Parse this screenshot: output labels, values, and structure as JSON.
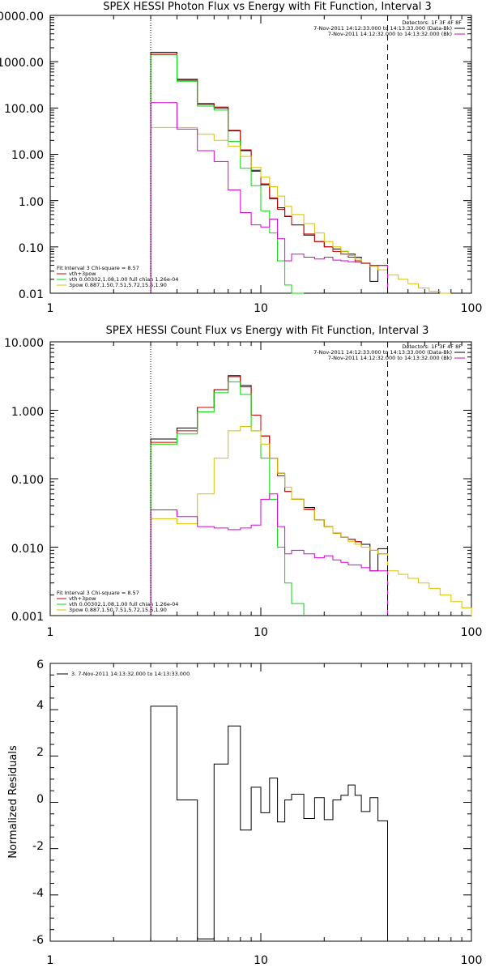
{
  "colors": {
    "black": "#000000",
    "red": "#cc0000",
    "green": "#00dd00",
    "yellow": "#d8c000",
    "magenta": "#d800d8"
  },
  "chart_data": [
    {
      "type": "line",
      "panel": "photon",
      "title": "SPEX HESSI Photon Flux vs Energy with Fit Function, Interval 3",
      "xscale": "log",
      "yscale": "log",
      "xlim": [
        1,
        100
      ],
      "ylim": [
        0.01,
        10000
      ],
      "xticks": [
        1,
        10,
        100
      ],
      "xtick_labels": [
        "1",
        "10",
        "100"
      ],
      "yticks": [
        0.01,
        0.1,
        1,
        10,
        100,
        1000,
        10000
      ],
      "ytick_labels": [
        "0.01",
        "0.10",
        "1.00",
        "10.00",
        "100.00",
        "1000.00",
        "10000.00"
      ],
      "vlines": [
        {
          "x": 3,
          "style": "dotted"
        },
        {
          "x": 40,
          "style": "dashed"
        }
      ],
      "legend_top_right": [
        "Detectors: 1F 3F 4F 8F",
        "7-Nov-2011 14:12:33.000 to 14:13:33.000 (Data-Bk)",
        "7-Nov-2011 14:12:32.000 to 14:13:32.000 (Bk)"
      ],
      "legend_bottom_left": [
        "Fit Interval 3   Chi-square = 8.57",
        "vth+3pow",
        "vth 0.00302,1.08,1.00  full chian 1.26e-04",
        "3pow 0.887,1.50,7.51,5.72,15.5,1.90"
      ],
      "bin_edges": [
        3.0,
        4.0,
        5.0,
        6.0,
        7.0,
        8.0,
        9.0,
        10.0,
        11.0,
        12.0,
        13.0,
        14.0,
        16.0,
        18.0,
        20.0,
        22.0,
        24.0,
        26.0,
        28.0,
        30.0,
        33.0,
        36.0,
        40.0,
        45.0,
        50.0,
        56.0,
        63.0,
        71.0,
        80.0,
        90.0,
        100.0
      ],
      "series": [
        {
          "color": "black",
          "values": [
            1600,
            400,
            120,
            100,
            32,
            12,
            4.5,
            2.2,
            1.1,
            0.7,
            0.45,
            0.3,
            0.18,
            0.13,
            0.1,
            0.09,
            0.08,
            0.07,
            0.06,
            0.045,
            0.018,
            0.04
          ]
        },
        {
          "color": "red",
          "values": [
            1450,
            420,
            125,
            105,
            33,
            12.5,
            4.3,
            2.3,
            1.15,
            0.65,
            0.46,
            0.3,
            0.19,
            0.13,
            0.1,
            0.08,
            0.07,
            0.06,
            0.05,
            0.045,
            0.04,
            0.04
          ]
        },
        {
          "color": "green",
          "values": [
            1400,
            380,
            110,
            90,
            19,
            5,
            2.1,
            0.6,
            0.2,
            0.05,
            0.015,
            0.01
          ]
        },
        {
          "color": "yellow",
          "values": [
            38,
            38,
            27,
            20,
            15,
            9,
            5.2,
            3.2,
            2.0,
            1.25,
            0.75,
            0.5,
            0.32,
            0.2,
            0.13,
            0.1,
            0.08,
            0.065,
            0.055,
            0.045,
            0.038,
            0.032,
            0.025,
            0.02,
            0.016,
            0.013,
            0.011,
            0.01
          ]
        },
        {
          "color": "magenta",
          "values": [
            130,
            35,
            12,
            7,
            1.7,
            0.55,
            0.3,
            0.27,
            0.4,
            0.15,
            0.05,
            0.07,
            0.06,
            0.055,
            0.06,
            0.052,
            0.05,
            0.048,
            0.047,
            0.044,
            0.04,
            0.04
          ]
        }
      ]
    },
    {
      "type": "line",
      "panel": "count",
      "title": "SPEX HESSI Count Flux vs Energy with Fit Function, Interval 3",
      "xscale": "log",
      "yscale": "log",
      "xlim": [
        1,
        100
      ],
      "ylim": [
        0.001,
        10
      ],
      "xticks": [
        1,
        10,
        100
      ],
      "xtick_labels": [
        "1",
        "10",
        "100"
      ],
      "yticks": [
        0.001,
        0.01,
        0.1,
        1,
        10
      ],
      "ytick_labels": [
        "0.001",
        "0.010",
        "0.100",
        "1.000",
        "10.000"
      ],
      "vlines": [
        {
          "x": 3,
          "style": "dotted"
        },
        {
          "x": 40,
          "style": "dashed"
        }
      ],
      "legend_top_right": [
        "Detectors: 1F 3F 4F 8F",
        "7-Nov-2011 14:12:33.000 to 14:13:33.000 (Data-Bk)",
        "7-Nov-2011 14:12:32.000 to 14:13:32.000 (Bk)"
      ],
      "legend_bottom_left": [
        "Fit Interval 3   Chi-square = 8.57",
        "vth+3pow",
        "vth 0.00302,1.08,1.00  full chian 1.26e-04",
        "3pow 0.887,1.50,7.51,5.72,15.5,1.90"
      ],
      "bin_edges": [
        3.0,
        4.0,
        5.0,
        6.0,
        7.0,
        8.0,
        9.0,
        10.0,
        11.0,
        12.0,
        13.0,
        14.0,
        16.0,
        18.0,
        20.0,
        22.0,
        24.0,
        26.0,
        28.0,
        30.0,
        33.0,
        36.0,
        40.0,
        45.0,
        50.0,
        56.0,
        63.0,
        71.0,
        80.0,
        90.0,
        100.0
      ],
      "series": [
        {
          "color": "black",
          "values": [
            0.38,
            0.55,
            1.1,
            2.0,
            3.2,
            2.3,
            0.85,
            0.42,
            0.2,
            0.12,
            0.065,
            0.05,
            0.038,
            0.025,
            0.02,
            0.016,
            0.014,
            0.013,
            0.012,
            0.011,
            0.0045,
            0.0095
          ]
        },
        {
          "color": "red",
          "values": [
            0.34,
            0.5,
            1.1,
            2.0,
            3.1,
            2.2,
            0.85,
            0.42,
            0.2,
            0.11,
            0.065,
            0.05,
            0.036,
            0.025,
            0.02,
            0.016,
            0.014,
            0.013,
            0.012,
            0.01,
            0.009,
            0.008
          ]
        },
        {
          "color": "green",
          "values": [
            0.32,
            0.45,
            0.95,
            1.8,
            2.6,
            1.7,
            0.5,
            0.2,
            0.05,
            0.01,
            0.003,
            0.0015
          ]
        },
        {
          "color": "yellow",
          "values": [
            0.026,
            0.022,
            0.06,
            0.2,
            0.5,
            0.58,
            0.5,
            0.32,
            0.2,
            0.12,
            0.075,
            0.05,
            0.035,
            0.025,
            0.02,
            0.016,
            0.014,
            0.012,
            0.011,
            0.01,
            0.009,
            0.008,
            0.0045,
            0.004,
            0.0035,
            0.003,
            0.0025,
            0.002,
            0.0016,
            0.0013
          ]
        },
        {
          "color": "magenta",
          "values": [
            0.035,
            0.028,
            0.02,
            0.019,
            0.018,
            0.019,
            0.021,
            0.05,
            0.06,
            0.02,
            0.008,
            0.009,
            0.008,
            0.007,
            0.0075,
            0.0065,
            0.006,
            0.0055,
            0.0055,
            0.005,
            0.0045,
            0.0045
          ]
        }
      ]
    },
    {
      "type": "line",
      "panel": "residuals",
      "title": "",
      "xscale": "log",
      "yscale": "linear",
      "xlim": [
        1,
        100
      ],
      "ylim": [
        -6,
        6
      ],
      "xticks": [
        1,
        10,
        100
      ],
      "xtick_labels": [
        "1",
        "10",
        "100"
      ],
      "yticks": [
        -6,
        -4,
        -2,
        0,
        2,
        4,
        6
      ],
      "ytick_labels": [
        "-6",
        "-4",
        "-2",
        "0",
        "2",
        "4",
        "6"
      ],
      "ylabel": "Normalized Residuals",
      "legend_top_left": [
        "3.  7-Nov-2011 14:13:32.000 to 14:13:33.000"
      ],
      "bin_edges": [
        3.0,
        4.0,
        5.0,
        6.0,
        7.0,
        8.0,
        9.0,
        10.0,
        11.0,
        12.0,
        13.0,
        14.0,
        16.0,
        18.0,
        20.0,
        22.0,
        24.0,
        26.0,
        28.0,
        30.0,
        33.0,
        36.0,
        40.0
      ],
      "series": [
        {
          "color": "black",
          "values": [
            4.15,
            0.1,
            -5.9,
            1.65,
            3.3,
            -1.2,
            0.65,
            -0.45,
            1.05,
            -0.85,
            0.1,
            0.35,
            -0.7,
            0.2,
            -0.75,
            0.1,
            0.3,
            0.75,
            0.3,
            -0.4,
            0.2,
            -0.8
          ]
        }
      ]
    }
  ]
}
